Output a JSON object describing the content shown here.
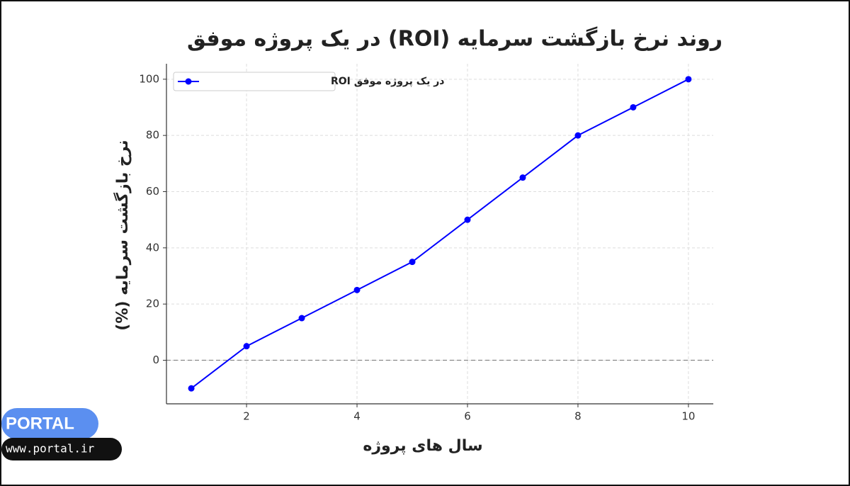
{
  "chart_data": {
    "type": "line",
    "title": "روند نرخ بازگشت سرمایه (ROI) در یک پروژه موفق",
    "xlabel": "سال های پروژه",
    "ylabel": "نرخ بازگشت سرمایه (%)",
    "x": [
      1,
      2,
      3,
      4,
      5,
      6,
      7,
      8,
      9,
      10
    ],
    "series": [
      {
        "name": "ROI در یک پروژه موفق",
        "color": "#0000ff",
        "values": [
          -10,
          5,
          15,
          25,
          35,
          50,
          65,
          80,
          90,
          100
        ]
      }
    ],
    "xlim": [
      0.55,
      10.45
    ],
    "ylim": [
      -15.5,
      105.5
    ],
    "xticks": [
      2,
      4,
      6,
      8,
      10
    ],
    "yticks": [
      0,
      20,
      40,
      60,
      80,
      100
    ],
    "hline": 0,
    "grid": true,
    "legend": "upper left"
  },
  "watermark": {
    "brand": "PORTAL",
    "url": "www.portal.ir"
  }
}
